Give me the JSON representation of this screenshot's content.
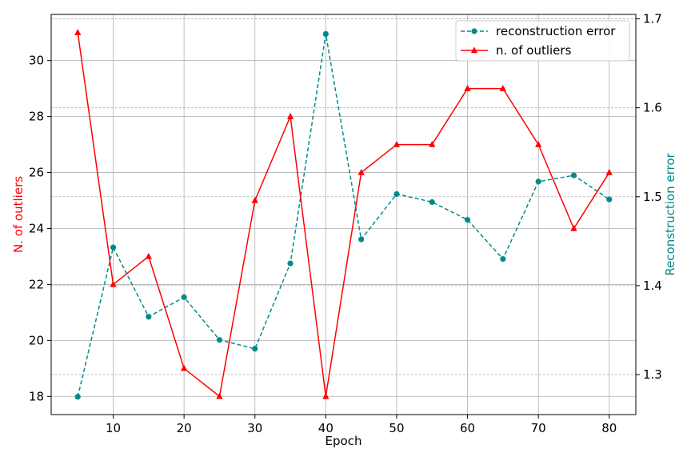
{
  "chart_data": {
    "type": "line",
    "x": [
      5,
      10,
      15,
      20,
      25,
      30,
      35,
      40,
      45,
      50,
      55,
      60,
      65,
      70,
      75,
      80
    ],
    "xlabel": "Epoch",
    "xlim": [
      1.25,
      83.75
    ],
    "xticks": [
      10,
      20,
      30,
      40,
      50,
      60,
      70,
      80
    ],
    "y_left": {
      "label": "N. of outliers",
      "color": "#ff0000",
      "lim": [
        17.35,
        31.65
      ],
      "ticks": [
        18,
        20,
        22,
        24,
        26,
        28,
        30
      ]
    },
    "y_right": {
      "label": "Reconstruction error",
      "color": "#008b8b",
      "lim": [
        1.255,
        1.705
      ],
      "ticks": [
        1.3,
        1.4,
        1.5,
        1.6,
        1.7
      ],
      "tick_labels": [
        "1.3",
        "1.4",
        "1.5",
        "1.6",
        "1.7"
      ]
    },
    "grid": true,
    "legend_position": "top-right",
    "series": [
      {
        "name": "reconstruction error",
        "axis": "right",
        "color": "#008b8b",
        "linestyle": "dashed",
        "marker": "circle",
        "values": [
          1.275,
          1.443,
          1.365,
          1.387,
          1.339,
          1.329,
          1.425,
          1.683,
          1.452,
          1.503,
          1.494,
          1.474,
          1.43,
          1.517,
          1.524,
          1.497
        ]
      },
      {
        "name": "n. of outliers",
        "axis": "left",
        "color": "#ff0000",
        "linestyle": "solid",
        "marker": "triangle",
        "values": [
          31,
          22,
          23,
          19,
          18,
          25,
          28,
          18,
          26,
          27,
          27,
          29,
          29,
          27,
          24,
          26
        ]
      }
    ]
  }
}
